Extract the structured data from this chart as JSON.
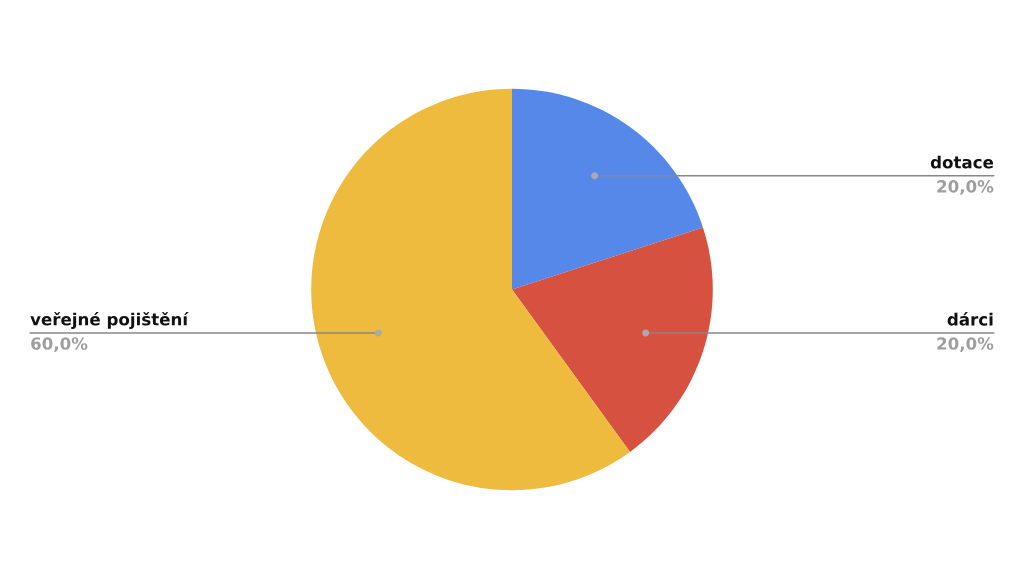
{
  "chart_data": {
    "type": "pie",
    "categories": [
      "dotace",
      "dárci",
      "veřejné pojištění"
    ],
    "values": [
      20,
      20,
      60
    ],
    "colors": [
      "#5588e8",
      "#d65140",
      "#efbb3f"
    ],
    "value_labels": [
      "20,0%",
      "20,0%",
      "60,0%"
    ]
  }
}
